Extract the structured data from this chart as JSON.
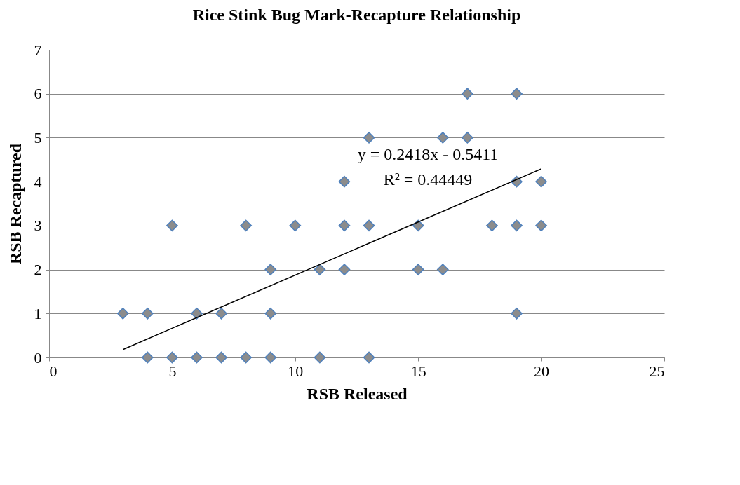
{
  "chart_data": {
    "type": "scatter",
    "title": "Rice Stink Bug Mark-Recapture Relationship",
    "xlabel": "RSB Released",
    "ylabel": "RSB Recaptured",
    "xlim": [
      0,
      25
    ],
    "xticks": [
      0,
      5,
      10,
      15,
      20,
      25
    ],
    "ylim": [
      0,
      7
    ],
    "yticks": [
      0,
      1,
      2,
      3,
      4,
      5,
      6,
      7
    ],
    "grid": "y",
    "series": [
      {
        "marker": "diamond",
        "color": "#8c8c8c",
        "x": [
          4,
          5,
          6,
          7,
          8,
          9,
          11,
          13,
          3,
          4,
          6,
          7,
          9,
          19,
          9,
          11,
          12,
          15,
          16,
          5,
          8,
          10,
          12,
          13,
          15,
          18,
          19,
          20,
          12,
          19,
          20,
          13,
          16,
          17,
          17,
          19
        ],
        "values": [
          0,
          0,
          0,
          0,
          0,
          0,
          0,
          0,
          1,
          1,
          1,
          1,
          1,
          1,
          2,
          2,
          2,
          2,
          2,
          3,
          3,
          3,
          3,
          3,
          3,
          3,
          3,
          3,
          4,
          4,
          4,
          5,
          5,
          5,
          6,
          6
        ]
      },
      {
        "type": "line",
        "color": "#000000",
        "x": [
          3,
          20
        ],
        "values": [
          0.18,
          4.29
        ]
      }
    ],
    "annotations": [
      "y = 0.2418x - 0.5411",
      "R² = 0.44449"
    ]
  }
}
